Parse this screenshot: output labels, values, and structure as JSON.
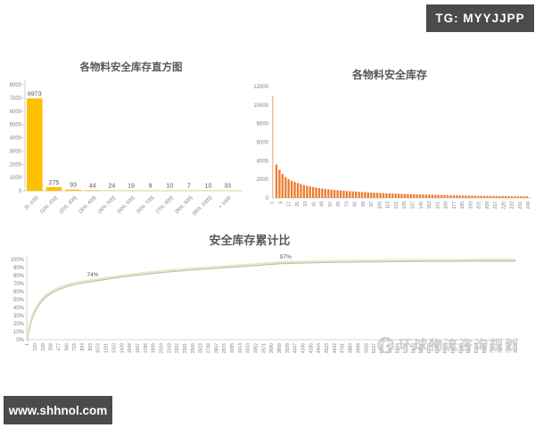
{
  "badges": {
    "tg": "TG: MYYJJPP",
    "site": "www.shhnol.com"
  },
  "watermark": {
    "text": "环球物流咨询规划"
  },
  "colors": {
    "gold": "#FFC000",
    "orange": "#ED7D31",
    "tan": "#EFC49E",
    "line": "#EBE4BE",
    "shadow": "#B8B8B0",
    "axis_line": "#C6C6C6",
    "axis_text": "#808080",
    "title": "#595959",
    "badge_bg": "#4B4B4B",
    "watermark": "#C6C6C6"
  },
  "chart_data": [
    {
      "type": "bar",
      "title": "各物料安全库存直方图",
      "categories": [
        "[0, 100]",
        "(100, 200]",
        "(200, 300]",
        "(300, 400]",
        "(400, 500]",
        "(500, 600]",
        "(600, 700]",
        "(700, 800]",
        "(800, 900]",
        "(900, 1000]",
        "> 1000"
      ],
      "values": [
        6973,
        275,
        93,
        44,
        24,
        19,
        9,
        10,
        7,
        10,
        33
      ],
      "ylabel": "",
      "xlabel": "",
      "ylim": [
        0,
        8000
      ],
      "yticks": [
        0,
        1000,
        2000,
        3000,
        4000,
        5000,
        6000,
        7000,
        8000
      ],
      "grid": false,
      "data_labels": true
    },
    {
      "type": "bar",
      "title": "各物料安全库存",
      "n_items": 250,
      "render_bars": 84,
      "x_tick_labels": [
        "1",
        "9",
        "17",
        "25",
        "33",
        "41",
        "49",
        "57",
        "65",
        "73",
        "81",
        "89",
        "97",
        "105",
        "113",
        "121",
        "129",
        "137",
        "145",
        "153",
        "161",
        "169",
        "177",
        "185",
        "193",
        "201",
        "209",
        "217",
        "225",
        "233",
        "241",
        "249"
      ],
      "anchors": [
        [
          1,
          11000
        ],
        [
          2,
          4200
        ],
        [
          4,
          3600
        ],
        [
          6,
          3200
        ],
        [
          9,
          2700
        ],
        [
          13,
          2250
        ],
        [
          17,
          1950
        ],
        [
          21,
          1750
        ],
        [
          25,
          1600
        ],
        [
          29,
          1450
        ],
        [
          33,
          1330
        ],
        [
          41,
          1150
        ],
        [
          49,
          1010
        ],
        [
          57,
          900
        ],
        [
          65,
          820
        ],
        [
          73,
          750
        ],
        [
          81,
          690
        ],
        [
          89,
          635
        ],
        [
          97,
          585
        ],
        [
          105,
          540
        ],
        [
          113,
          500
        ],
        [
          121,
          465
        ],
        [
          129,
          435
        ],
        [
          137,
          405
        ],
        [
          145,
          378
        ],
        [
          153,
          352
        ],
        [
          161,
          328
        ],
        [
          169,
          306
        ],
        [
          177,
          286
        ],
        [
          185,
          268
        ],
        [
          193,
          252
        ],
        [
          201,
          238
        ],
        [
          209,
          226
        ],
        [
          217,
          214
        ],
        [
          225,
          202
        ],
        [
          233,
          190
        ],
        [
          241,
          178
        ],
        [
          249,
          165
        ]
      ],
      "ylim": [
        0,
        12000
      ],
      "yticks": [
        0,
        2000,
        4000,
        6000,
        8000,
        10000,
        12000
      ],
      "grid": false
    },
    {
      "type": "line",
      "title": "安全库存累计比",
      "x_start": 1,
      "x_step": 119,
      "x_tick_labels": [
        "1",
        "120",
        "239",
        "358",
        "477",
        "596",
        "715",
        "834",
        "953",
        "1072",
        "1191",
        "1310",
        "1429",
        "1548",
        "1667",
        "1786",
        "1905",
        "2024",
        "2143",
        "2262",
        "2381",
        "2500",
        "2619",
        "2738",
        "2857",
        "2976",
        "3095",
        "3214",
        "3333",
        "3452",
        "3571",
        "3690",
        "3809",
        "3928",
        "4047",
        "4166",
        "4285",
        "4404",
        "4523",
        "4642",
        "4761",
        "4880",
        "4999",
        "5118",
        "5237",
        "5356",
        "5475",
        "5594",
        "5713",
        "5832",
        "5951",
        "6070",
        "6189",
        "6308",
        "6427",
        "6546",
        "6665",
        "6784",
        "6903",
        "7022",
        "7141",
        "7260",
        "7379"
      ],
      "ytick_labels": [
        "0%",
        "10%",
        "20%",
        "30%",
        "40%",
        "50%",
        "60%",
        "70%",
        "80%",
        "90%",
        "100%"
      ],
      "ylim_pct": [
        0,
        100
      ],
      "points": [
        [
          0,
          0
        ],
        [
          0.0015,
          6
        ],
        [
          0.003,
          11
        ],
        [
          0.005,
          17
        ],
        [
          0.008,
          24
        ],
        [
          0.012,
          31
        ],
        [
          0.017,
          38
        ],
        [
          0.023,
          44
        ],
        [
          0.03,
          50
        ],
        [
          0.04,
          56
        ],
        [
          0.052,
          61
        ],
        [
          0.067,
          65
        ],
        [
          0.085,
          69
        ],
        [
          0.105,
          71.8
        ],
        [
          0.134,
          74.5
        ],
        [
          0.165,
          77.5
        ],
        [
          0.2,
          80.5
        ],
        [
          0.24,
          83.5
        ],
        [
          0.29,
          86.5
        ],
        [
          0.34,
          89
        ],
        [
          0.4,
          91.5
        ],
        [
          0.46,
          94
        ],
        [
          0.52,
          96.8
        ],
        [
          0.6,
          98
        ],
        [
          0.7,
          99
        ],
        [
          0.82,
          99.6
        ],
        [
          0.92,
          99.9
        ],
        [
          1,
          100
        ]
      ],
      "annotations": [
        {
          "text": "74%",
          "fx": 0.135,
          "pct": 74.5
        },
        {
          "text": "97%",
          "fx": 0.53,
          "pct": 96.8
        }
      ],
      "grid": false,
      "legend": "none"
    }
  ]
}
